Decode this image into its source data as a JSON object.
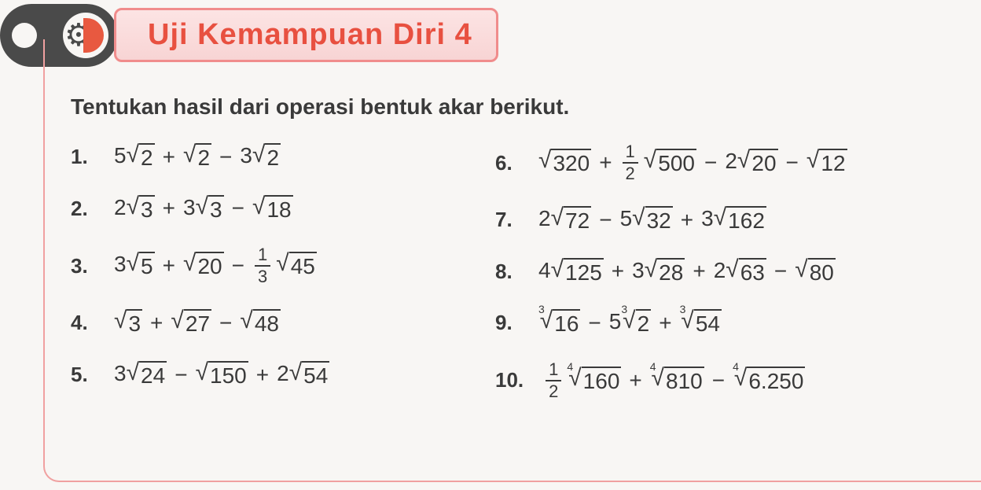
{
  "header": {
    "title": "Uji Kemampuan Diri 4",
    "title_color": "#e85040",
    "border_color": "#f08c8c",
    "badge_bg": "#4a4a4a",
    "accent": "#e85940"
  },
  "instruction": "Tentukan hasil dari operasi bentuk akar berikut.",
  "problems_left": [
    {
      "num": "1.",
      "terms": [
        {
          "coef": "5",
          "rad": "2"
        },
        {
          "op": "+"
        },
        {
          "rad": "2"
        },
        {
          "op": "−"
        },
        {
          "coef": "3",
          "rad": "2"
        }
      ]
    },
    {
      "num": "2.",
      "terms": [
        {
          "coef": "2",
          "rad": "3"
        },
        {
          "op": "+"
        },
        {
          "coef": "3",
          "rad": "3"
        },
        {
          "op": "−"
        },
        {
          "rad": "18"
        }
      ]
    },
    {
      "num": "3.",
      "terms": [
        {
          "coef": "3",
          "rad": "5"
        },
        {
          "op": "+"
        },
        {
          "rad": "20"
        },
        {
          "op": "−"
        },
        {
          "frac": [
            "1",
            "3"
          ]
        },
        {
          "rad": "45"
        }
      ]
    },
    {
      "num": "4.",
      "terms": [
        {
          "rad": "3"
        },
        {
          "op": "+"
        },
        {
          "rad": "27"
        },
        {
          "op": "−"
        },
        {
          "rad": "48"
        }
      ]
    },
    {
      "num": "5.",
      "terms": [
        {
          "coef": "3",
          "rad": "24"
        },
        {
          "op": "−"
        },
        {
          "rad": "150"
        },
        {
          "op": "+"
        },
        {
          "coef": "2",
          "rad": "54"
        }
      ]
    }
  ],
  "problems_right": [
    {
      "num": "6.",
      "terms": [
        {
          "rad": "320"
        },
        {
          "op": "+"
        },
        {
          "frac": [
            "1",
            "2"
          ]
        },
        {
          "rad": "500"
        },
        {
          "op": "−"
        },
        {
          "coef": "2",
          "rad": "20"
        },
        {
          "op": "−"
        },
        {
          "rad": "12"
        }
      ]
    },
    {
      "num": "7.",
      "terms": [
        {
          "coef": "2",
          "rad": "72"
        },
        {
          "op": "−"
        },
        {
          "coef": "5",
          "rad": "32"
        },
        {
          "op": "+"
        },
        {
          "coef": "3",
          "rad": "162"
        }
      ]
    },
    {
      "num": "8.",
      "terms": [
        {
          "coef": "4",
          "rad": "125"
        },
        {
          "op": "+"
        },
        {
          "coef": "3",
          "rad": "28"
        },
        {
          "op": "+"
        },
        {
          "coef": "2",
          "rad": "63"
        },
        {
          "op": "−"
        },
        {
          "rad": "80"
        }
      ]
    },
    {
      "num": "9.",
      "terms": [
        {
          "idx": "3",
          "rad": "16"
        },
        {
          "op": "−"
        },
        {
          "coef": "5",
          "idx": "3",
          "rad": "2"
        },
        {
          "op": "+"
        },
        {
          "idx": "3",
          "rad": "54"
        }
      ]
    },
    {
      "num": "10.",
      "terms": [
        {
          "frac": [
            "1",
            "2"
          ]
        },
        {
          "idx": "4",
          "rad": "160"
        },
        {
          "op": "+"
        },
        {
          "idx": "4",
          "rad": "810"
        },
        {
          "op": "−"
        },
        {
          "idx": "4",
          "rad": "6.250"
        }
      ]
    }
  ],
  "style": {
    "page_bg": "#f8f6f4",
    "text_color": "#3a3a3a",
    "content_border": "#f0a0a0",
    "instruction_fontsize": 28,
    "expr_fontsize": 28,
    "num_fontsize": 26
  }
}
